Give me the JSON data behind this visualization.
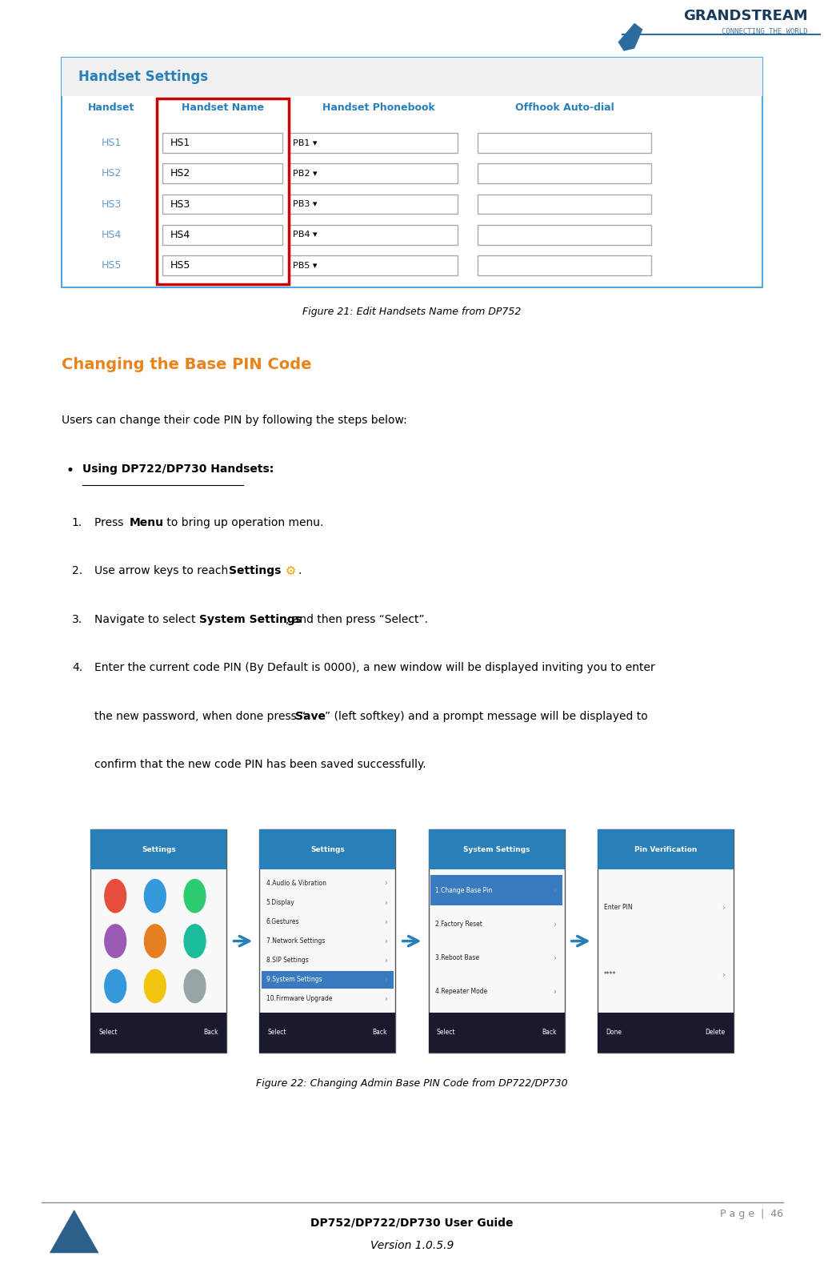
{
  "page_width": 10.3,
  "page_height": 15.94,
  "background_color": "#ffffff",
  "grandstream_text": "GRANDSTREAM",
  "grandstream_sub": "CONNECTING THE WORLD",
  "gs_color": "#1a3a5c",
  "gs_sub_color": "#4a7a9b",
  "table_title": "Handset Settings",
  "table_title_color": "#2980b9",
  "table_header_bg": "#f0f0f0",
  "table_border_color": "#4da6e8",
  "table_red_border": "#cc0000",
  "table_headers": [
    "Handset",
    "Handset Name",
    "Handset Phonebook",
    "Offhook Auto-dial"
  ],
  "table_header_color": "#2980b9",
  "table_rows": [
    [
      "HS1",
      "HS1",
      "PB1 ▾",
      ""
    ],
    [
      "HS2",
      "HS2",
      "PB2 ▾",
      ""
    ],
    [
      "HS3",
      "HS3",
      "PB3 ▾",
      ""
    ],
    [
      "HS4",
      "HS4",
      "PB4 ▾",
      ""
    ],
    [
      "HS5",
      "HS5",
      "PB5 ▾",
      ""
    ]
  ],
  "table_row_color": "#6699cc",
  "fig21_caption": "Figure 21: Edit Handsets Name from DP752",
  "section_title": "Changing the Base PIN Code",
  "section_title_color": "#e8821a",
  "intro_text": "Users can change their code PIN by following the steps below:",
  "bullet_header": "Using DP722/DP730 Handsets:",
  "fig22_caption": "Figure 22: Changing Admin Base PIN Code from DP722/DP730",
  "footer_line_color": "#888888",
  "footer_text1": "DP752/DP722/DP730 User Guide",
  "footer_text2": "Version 1.0.5.9",
  "footer_page": "P a g e  |  46",
  "footer_page_color": "#888888",
  "screen1_title": "Settings",
  "screen1_title_bg": "#2980b9",
  "screen2_title": "Settings",
  "screen2_title_bg": "#2980b9",
  "screen2_items": [
    "4.Audio & Vibration",
    "5.Display",
    "6.Gestures",
    "7.Network Settings",
    "8.SIP Settings",
    "9.System Settings",
    "10.Firmware Upgrade"
  ],
  "screen3_title": "System Settings",
  "screen3_title_bg": "#2980b9",
  "screen3_items": [
    "1.Change Base Pin",
    "2.Factory Reset",
    "3.Reboot Base",
    "4.Repeater Mode"
  ],
  "screen4_title": "Pin Verification",
  "screen4_title_bg": "#2980b9",
  "screen4_items": [
    "Enter PIN",
    "****"
  ]
}
